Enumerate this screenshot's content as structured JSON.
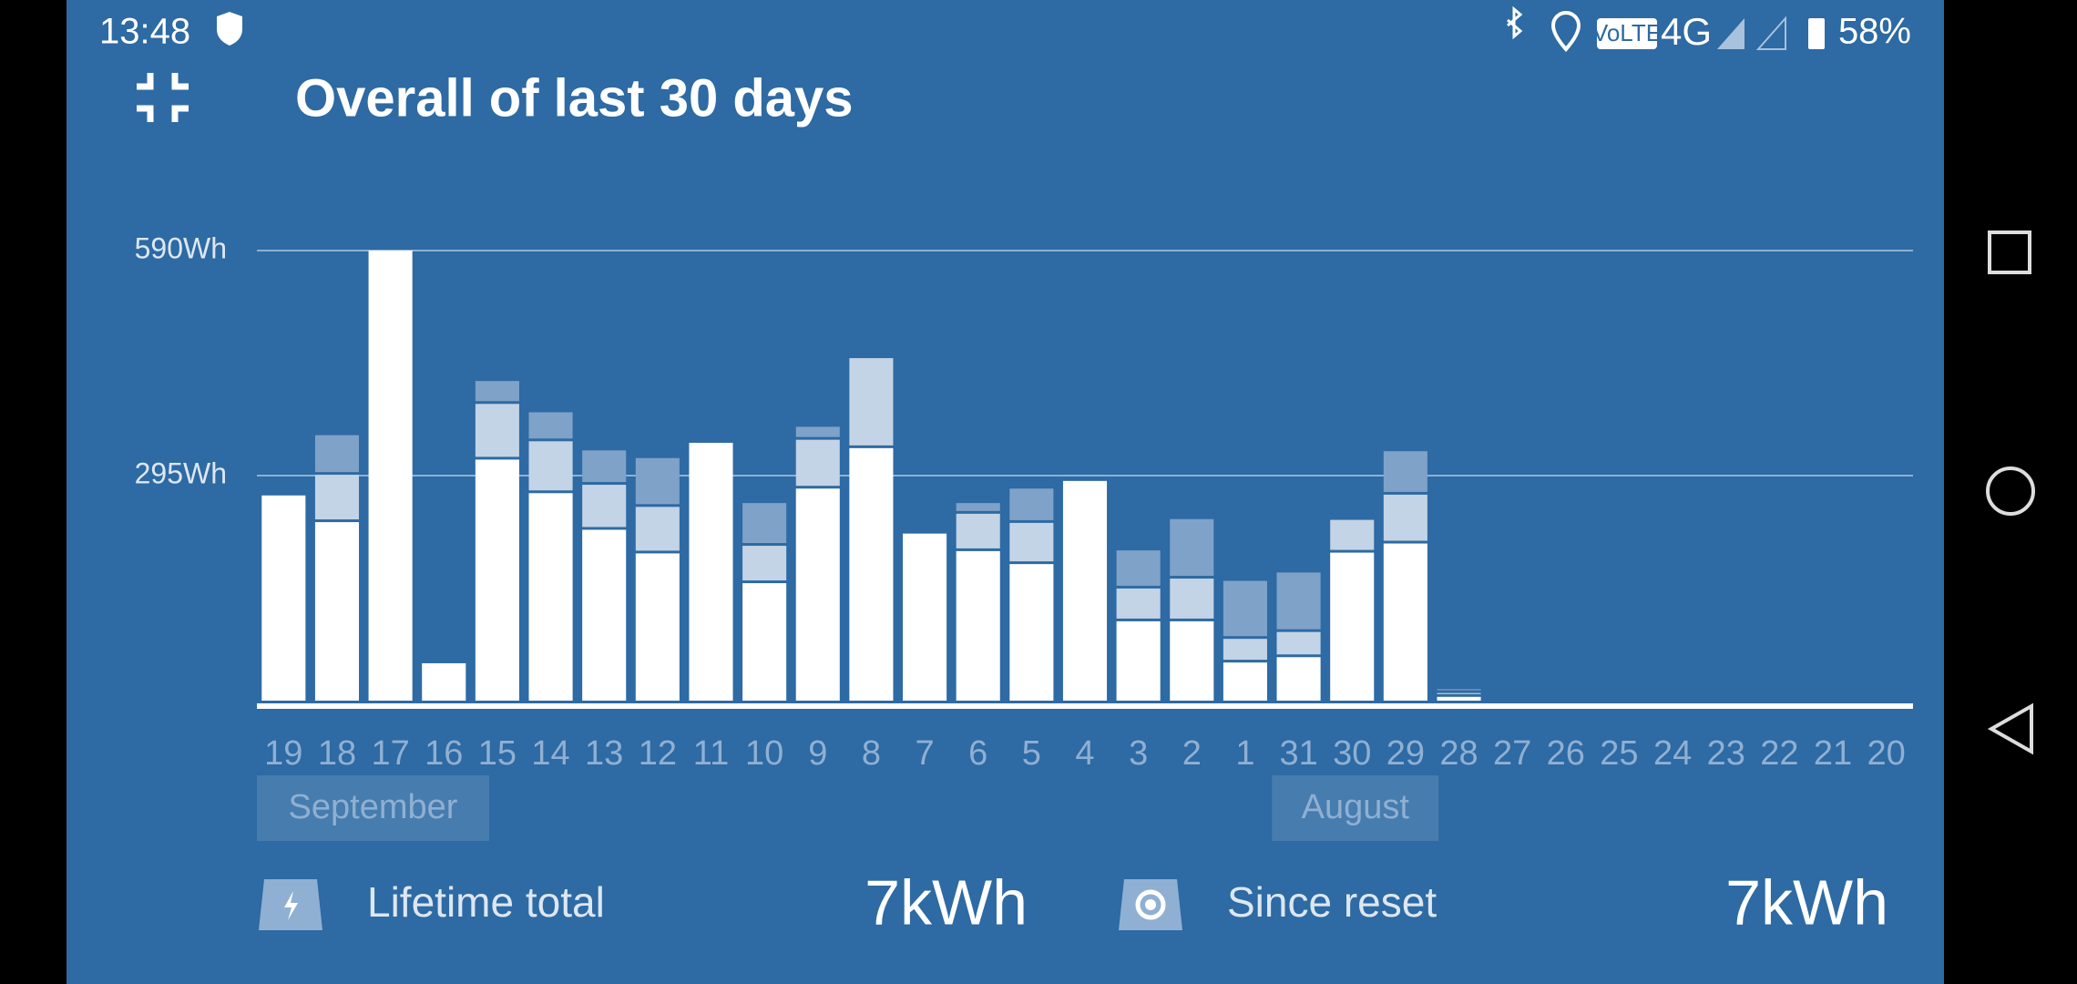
{
  "status_bar": {
    "time": "13:48",
    "volte": "VoLTE",
    "network": "4G",
    "battery": "58%"
  },
  "header": {
    "title": "Overall of last 30 days"
  },
  "chart_data": {
    "type": "bar",
    "stacked": true,
    "categories": [
      "19",
      "18",
      "17",
      "16",
      "15",
      "14",
      "13",
      "12",
      "11",
      "10",
      "9",
      "8",
      "7",
      "6",
      "5",
      "4",
      "3",
      "2",
      "1",
      "31",
      "30",
      "29",
      "28",
      "27",
      "26",
      "25",
      "24",
      "23",
      "22",
      "21",
      "20"
    ],
    "series": [
      {
        "color": "#ffffff",
        "values": [
          269,
          234,
          590,
          49,
          316,
          272,
          224,
          193,
          338,
          154,
          278,
          331,
          219,
          196,
          179,
          288,
          104,
          104,
          50,
          57,
          194,
          206,
          5,
          0,
          0,
          0,
          0,
          0,
          0,
          0,
          0
        ]
      },
      {
        "color": "#c3d4e6",
        "values": [
          0,
          62,
          0,
          0,
          73,
          68,
          59,
          61,
          0,
          49,
          64,
          118,
          0,
          49,
          54,
          0,
          43,
          56,
          31,
          33,
          43,
          64,
          5,
          0,
          0,
          0,
          0,
          0,
          0,
          0,
          0
        ]
      },
      {
        "color": "#7fa2c9",
        "values": [
          0,
          52,
          0,
          0,
          30,
          38,
          45,
          64,
          0,
          56,
          17,
          0,
          0,
          14,
          45,
          0,
          50,
          78,
          76,
          78,
          0,
          57,
          5,
          0,
          0,
          0,
          0,
          0,
          0,
          0,
          0
        ]
      }
    ],
    "ylim": [
      0,
      590
    ],
    "yticks": [
      {
        "value": 295,
        "label": "295Wh"
      },
      {
        "value": 590,
        "label": "590Wh"
      }
    ],
    "grid": true,
    "months": [
      "September",
      "August"
    ]
  },
  "footer": {
    "lifetime": {
      "label": "Lifetime total",
      "value": "7kWh"
    },
    "reset": {
      "label": "Since reset",
      "value": "7kWh"
    }
  }
}
